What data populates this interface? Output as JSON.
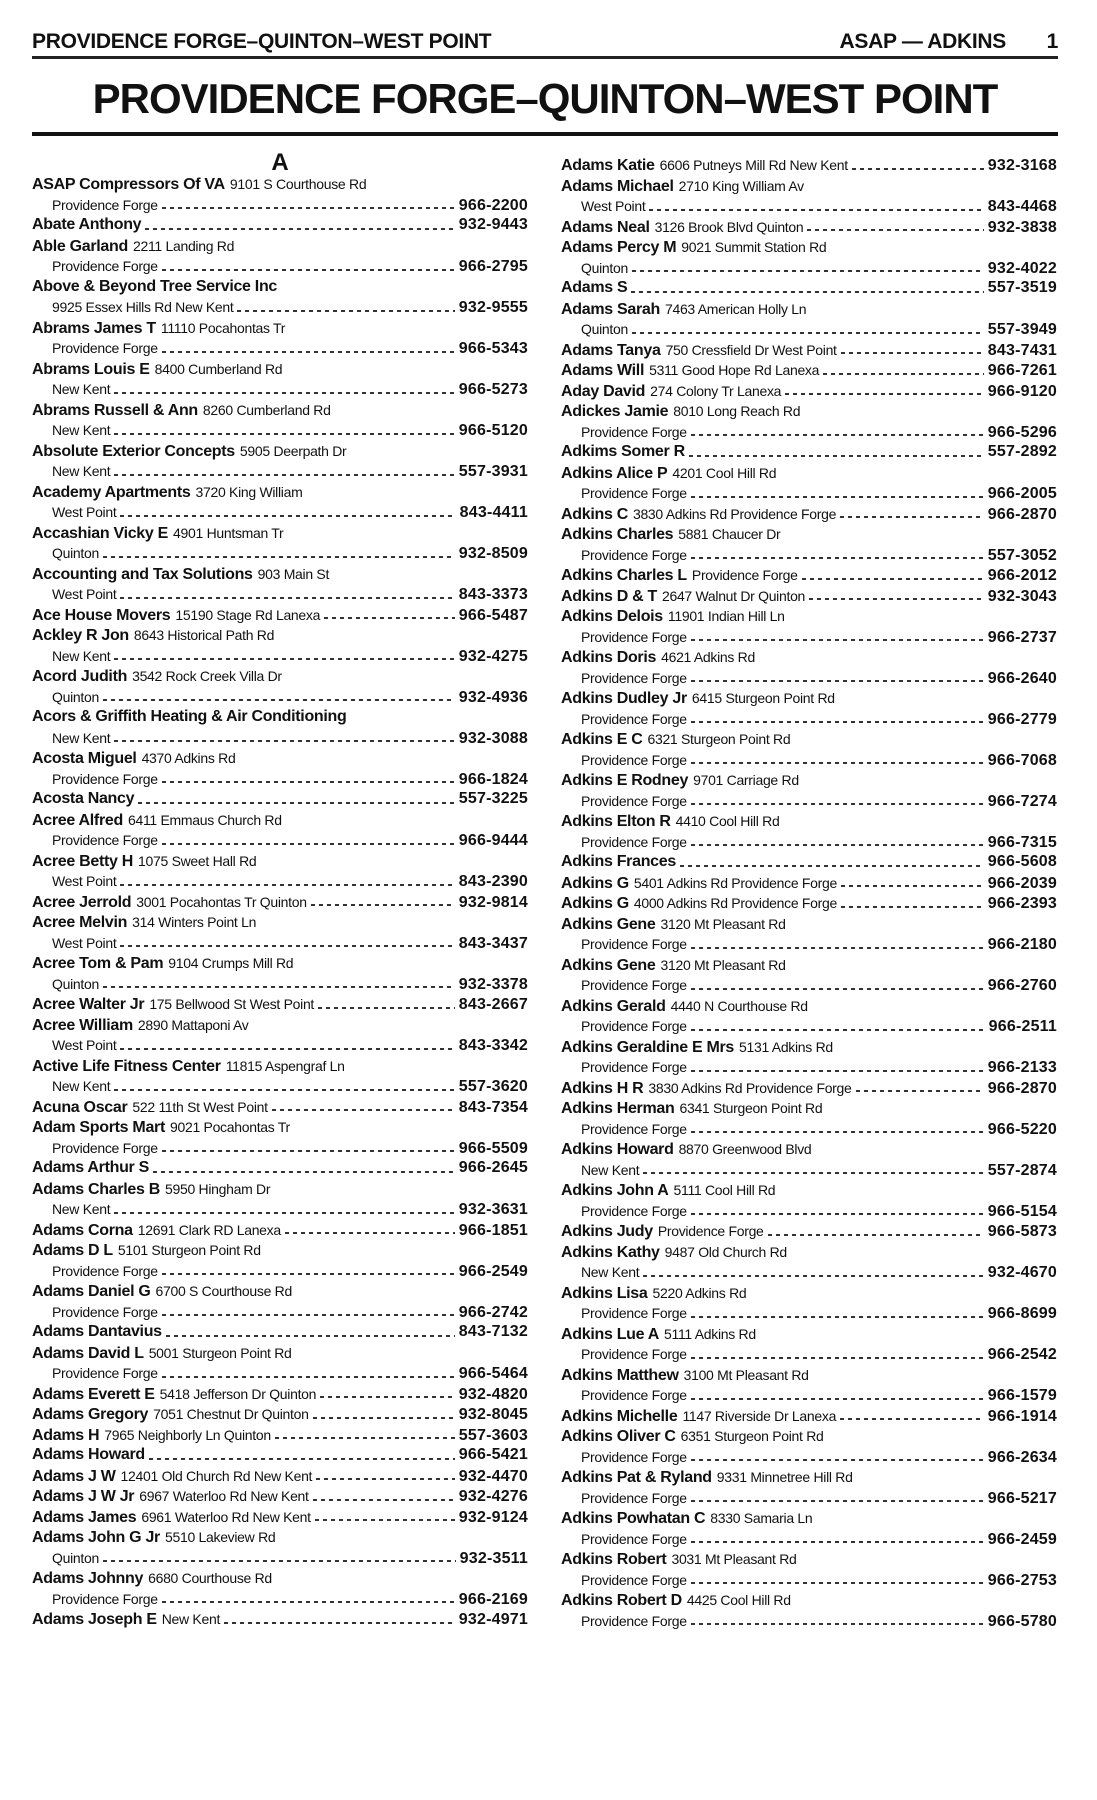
{
  "running_header": {
    "left": "PROVIDENCE FORGE–QUINTON–WEST POINT",
    "range": "ASAP — ADKINS",
    "page_number": "1"
  },
  "title": "PROVIDENCE FORGE–QUINTON–WEST POINT",
  "section_letter": "A",
  "left_column": [
    {
      "name": "ASAP Compressors Of VA",
      "address": "9101 S Courthouse Rd",
      "locality": "Providence Forge",
      "phone": "966-2200"
    },
    {
      "name": "Abate Anthony",
      "address": "",
      "locality": "",
      "phone": "932-9443"
    },
    {
      "name": "Able Garland",
      "address": "2211 Landing Rd",
      "locality": "Providence Forge",
      "phone": "966-2795"
    },
    {
      "name": "Above & Beyond Tree Service Inc",
      "address": "",
      "locality": "9925 Essex Hills Rd New Kent",
      "phone": "932-9555"
    },
    {
      "name": "Abrams James T",
      "address": "11110 Pocahontas Tr",
      "locality": "Providence Forge",
      "phone": "966-5343"
    },
    {
      "name": "Abrams Louis E",
      "address": "8400 Cumberland Rd",
      "locality": "New Kent",
      "phone": "966-5273"
    },
    {
      "name": "Abrams Russell & Ann",
      "address": "8260 Cumberland Rd",
      "locality": "New Kent",
      "phone": "966-5120"
    },
    {
      "name": "Absolute Exterior Concepts",
      "address": "5905 Deerpath Dr",
      "locality": "New Kent",
      "phone": "557-3931"
    },
    {
      "name": "Academy Apartments",
      "address": "3720 King William",
      "locality": "West Point",
      "phone": "843-4411"
    },
    {
      "name": "Accashian Vicky E",
      "address": "4901 Huntsman Tr",
      "locality": "Quinton",
      "phone": "932-8509"
    },
    {
      "name": "Accounting and Tax Solutions",
      "address": "903 Main St",
      "locality": "West Point",
      "phone": "843-3373"
    },
    {
      "name": "Ace House Movers",
      "address": "15190 Stage Rd Lanexa",
      "locality": "",
      "phone": "966-5487"
    },
    {
      "name": "Ackley R Jon",
      "address": "8643 Historical Path Rd",
      "locality": "New Kent",
      "phone": "932-4275"
    },
    {
      "name": "Acord Judith",
      "address": "3542 Rock Creek Villa Dr",
      "locality": "Quinton",
      "phone": "932-4936"
    },
    {
      "name": "Acors & Griffith Heating & Air Conditioning",
      "address": "",
      "locality": "New Kent",
      "phone": "932-3088"
    },
    {
      "name": "Acosta Miguel",
      "address": "4370 Adkins Rd",
      "locality": "Providence Forge",
      "phone": "966-1824"
    },
    {
      "name": "Acosta Nancy",
      "address": "",
      "locality": "",
      "phone": "557-3225"
    },
    {
      "name": "Acree Alfred",
      "address": "6411 Emmaus Church Rd",
      "locality": "Providence Forge",
      "phone": "966-9444"
    },
    {
      "name": "Acree Betty H",
      "address": "1075 Sweet Hall Rd",
      "locality": "West Point",
      "phone": "843-2390"
    },
    {
      "name": "Acree Jerrold",
      "address": "3001 Pocahontas Tr Quinton",
      "locality": "",
      "phone": "932-9814"
    },
    {
      "name": "Acree Melvin",
      "address": "314 Winters Point Ln",
      "locality": "West Point",
      "phone": "843-3437"
    },
    {
      "name": "Acree Tom & Pam",
      "address": "9104 Crumps Mill Rd",
      "locality": "Quinton",
      "phone": "932-3378"
    },
    {
      "name": "Acree Walter Jr",
      "address": "175 Bellwood St West Point",
      "locality": "",
      "phone": "843-2667"
    },
    {
      "name": "Acree William",
      "address": "2890 Mattaponi Av",
      "locality": "West Point",
      "phone": "843-3342"
    },
    {
      "name": "Active Life Fitness Center",
      "address": "11815 Aspengraf Ln",
      "locality": "New Kent",
      "phone": "557-3620"
    },
    {
      "name": "Acuna Oscar",
      "address": "522 11th St West Point",
      "locality": "",
      "phone": "843-7354"
    },
    {
      "name": "Adam Sports Mart",
      "address": "9021 Pocahontas Tr",
      "locality": "Providence Forge",
      "phone": "966-5509"
    },
    {
      "name": "Adams Arthur S",
      "address": "",
      "locality": "",
      "phone": "966-2645"
    },
    {
      "name": "Adams Charles B",
      "address": "5950 Hingham Dr",
      "locality": "New Kent",
      "phone": "932-3631"
    },
    {
      "name": "Adams Corna",
      "address": "12691 Clark RD Lanexa",
      "locality": "",
      "phone": "966-1851"
    },
    {
      "name": "Adams D L",
      "address": "5101 Sturgeon Point Rd",
      "locality": "Providence Forge",
      "phone": "966-2549"
    },
    {
      "name": "Adams Daniel G",
      "address": "6700 S Courthouse Rd",
      "locality": "Providence Forge",
      "phone": "966-2742"
    },
    {
      "name": "Adams Dantavius",
      "address": "",
      "locality": "",
      "phone": "843-7132"
    },
    {
      "name": "Adams David L",
      "address": "5001 Sturgeon Point Rd",
      "locality": "Providence Forge",
      "phone": "966-5464"
    },
    {
      "name": "Adams Everett E",
      "address": "5418 Jefferson Dr Quinton",
      "locality": "",
      "phone": "932-4820"
    },
    {
      "name": "Adams Gregory",
      "address": "7051 Chestnut Dr Quinton",
      "locality": "",
      "phone": "932-8045"
    },
    {
      "name": "Adams H",
      "address": "7965 Neighborly Ln Quinton",
      "locality": "",
      "phone": "557-3603"
    },
    {
      "name": "Adams Howard",
      "address": "",
      "locality": "",
      "phone": "966-5421"
    },
    {
      "name": "Adams J W",
      "address": "12401 Old Church Rd New Kent",
      "locality": "",
      "phone": "932-4470"
    },
    {
      "name": "Adams J W Jr",
      "address": "6967 Waterloo Rd New Kent",
      "locality": "",
      "phone": "932-4276"
    },
    {
      "name": "Adams James",
      "address": "6961 Waterloo Rd New Kent",
      "locality": "",
      "phone": "932-9124"
    },
    {
      "name": "Adams John G Jr",
      "address": "5510 Lakeview Rd",
      "locality": "Quinton",
      "phone": "932-3511"
    },
    {
      "name": "Adams Johnny",
      "address": "6680 Courthouse Rd",
      "locality": "Providence Forge",
      "phone": "966-2169"
    },
    {
      "name": "Adams Joseph E",
      "address": "New Kent",
      "locality": "",
      "phone": "932-4971"
    }
  ],
  "right_column": [
    {
      "name": "Adams Katie",
      "address": "6606 Putneys Mill Rd New Kent",
      "locality": "",
      "phone": "932-3168"
    },
    {
      "name": "Adams Michael",
      "address": "2710 King William Av",
      "locality": "West Point",
      "phone": "843-4468"
    },
    {
      "name": "Adams Neal",
      "address": "3126 Brook Blvd Quinton",
      "locality": "",
      "phone": "932-3838"
    },
    {
      "name": "Adams Percy M",
      "address": "9021 Summit Station Rd",
      "locality": "Quinton",
      "phone": "932-4022"
    },
    {
      "name": "Adams S",
      "address": "",
      "locality": "",
      "phone": "557-3519"
    },
    {
      "name": "Adams Sarah",
      "address": "7463 American Holly Ln",
      "locality": "Quinton",
      "phone": "557-3949"
    },
    {
      "name": "Adams Tanya",
      "address": "750 Cressfield Dr West Point",
      "locality": "",
      "phone": "843-7431"
    },
    {
      "name": "Adams Will",
      "address": "5311 Good Hope Rd Lanexa",
      "locality": "",
      "phone": "966-7261"
    },
    {
      "name": "Aday David",
      "address": "274 Colony Tr Lanexa",
      "locality": "",
      "phone": "966-9120"
    },
    {
      "name": "Adickes Jamie",
      "address": "8010 Long Reach Rd",
      "locality": "Providence Forge",
      "phone": "966-5296"
    },
    {
      "name": "Adkims Somer R",
      "address": "",
      "locality": "",
      "phone": "557-2892"
    },
    {
      "name": "Adkins Alice P",
      "address": "4201 Cool Hill Rd",
      "locality": "Providence Forge",
      "phone": "966-2005"
    },
    {
      "name": "Adkins C",
      "address": "3830 Adkins Rd Providence Forge",
      "locality": "",
      "phone": "966-2870"
    },
    {
      "name": "Adkins Charles",
      "address": "5881 Chaucer Dr",
      "locality": "Providence Forge",
      "phone": "557-3052"
    },
    {
      "name": "Adkins Charles L",
      "address": "Providence Forge",
      "locality": "",
      "phone": "966-2012"
    },
    {
      "name": "Adkins D & T",
      "address": "2647 Walnut Dr Quinton",
      "locality": "",
      "phone": "932-3043"
    },
    {
      "name": "Adkins Delois",
      "address": "11901 Indian Hill Ln",
      "locality": "Providence Forge",
      "phone": "966-2737"
    },
    {
      "name": "Adkins Doris",
      "address": "4621 Adkins Rd",
      "locality": "Providence Forge",
      "phone": "966-2640"
    },
    {
      "name": "Adkins Dudley Jr",
      "address": "6415 Sturgeon Point Rd",
      "locality": "Providence Forge",
      "phone": "966-2779"
    },
    {
      "name": "Adkins E C",
      "address": "6321 Sturgeon Point Rd",
      "locality": "Providence Forge",
      "phone": "966-7068"
    },
    {
      "name": "Adkins E Rodney",
      "address": "9701 Carriage Rd",
      "locality": "Providence Forge",
      "phone": "966-7274"
    },
    {
      "name": "Adkins Elton R",
      "address": "4410 Cool Hill Rd",
      "locality": "Providence Forge",
      "phone": "966-7315"
    },
    {
      "name": "Adkins Frances",
      "address": "",
      "locality": "",
      "phone": "966-5608"
    },
    {
      "name": "Adkins G",
      "address": "5401 Adkins Rd Providence Forge",
      "locality": "",
      "phone": "966-2039"
    },
    {
      "name": "Adkins G",
      "address": "4000 Adkins Rd Providence Forge",
      "locality": "",
      "phone": "966-2393"
    },
    {
      "name": "Adkins Gene",
      "address": "3120 Mt Pleasant Rd",
      "locality": "Providence Forge",
      "phone": "966-2180"
    },
    {
      "name": "Adkins Gene",
      "address": "3120 Mt Pleasant Rd",
      "locality": "Providence Forge",
      "phone": "966-2760"
    },
    {
      "name": "Adkins Gerald",
      "address": "4440 N Courthouse Rd",
      "locality": "Providence Forge",
      "phone": "966-2511"
    },
    {
      "name": "Adkins Geraldine E Mrs",
      "address": "5131 Adkins Rd",
      "locality": "Providence Forge",
      "phone": "966-2133"
    },
    {
      "name": "Adkins H R",
      "address": "3830 Adkins Rd Providence Forge",
      "locality": "",
      "phone": "966-2870"
    },
    {
      "name": "Adkins Herman",
      "address": "6341 Sturgeon Point Rd",
      "locality": "Providence Forge",
      "phone": "966-5220"
    },
    {
      "name": "Adkins Howard",
      "address": "8870 Greenwood Blvd",
      "locality": "New Kent",
      "phone": "557-2874"
    },
    {
      "name": "Adkins John A",
      "address": "5111 Cool Hill Rd",
      "locality": "Providence Forge",
      "phone": "966-5154"
    },
    {
      "name": "Adkins Judy",
      "address": "Providence Forge",
      "locality": "",
      "phone": "966-5873"
    },
    {
      "name": "Adkins Kathy",
      "address": "9487 Old Church Rd",
      "locality": "New Kent",
      "phone": "932-4670"
    },
    {
      "name": "Adkins Lisa",
      "address": "5220 Adkins Rd",
      "locality": "Providence Forge",
      "phone": "966-8699"
    },
    {
      "name": "Adkins Lue A",
      "address": "5111 Adkins Rd",
      "locality": "Providence Forge",
      "phone": "966-2542"
    },
    {
      "name": "Adkins Matthew",
      "address": "3100 Mt Pleasant Rd",
      "locality": "Providence Forge",
      "phone": "966-1579"
    },
    {
      "name": "Adkins Michelle",
      "address": "1147 Riverside Dr Lanexa",
      "locality": "",
      "phone": "966-1914"
    },
    {
      "name": "Adkins Oliver C",
      "address": "6351 Sturgeon Point Rd",
      "locality": "Providence Forge",
      "phone": "966-2634"
    },
    {
      "name": "Adkins Pat & Ryland",
      "address": "9331 Minnetree Hill Rd",
      "locality": "Providence Forge",
      "phone": "966-5217"
    },
    {
      "name": "Adkins Powhatan C",
      "address": "8330 Samaria Ln",
      "locality": "Providence Forge",
      "phone": "966-2459"
    },
    {
      "name": "Adkins Robert",
      "address": "3031 Mt Pleasant Rd",
      "locality": "Providence Forge",
      "phone": "966-2753"
    },
    {
      "name": "Adkins Robert D",
      "address": "4425 Cool Hill Rd",
      "locality": "Providence Forge",
      "phone": "966-5780"
    }
  ]
}
